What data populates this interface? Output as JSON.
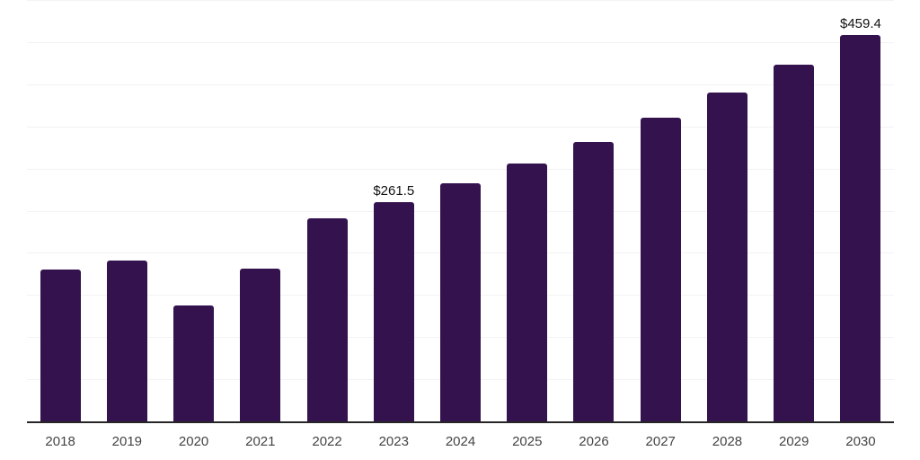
{
  "chart_data": {
    "type": "bar",
    "title": "",
    "xlabel": "",
    "ylabel": "",
    "categories": [
      "2018",
      "2019",
      "2020",
      "2021",
      "2022",
      "2023",
      "2024",
      "2025",
      "2026",
      "2027",
      "2028",
      "2029",
      "2030"
    ],
    "values": [
      181,
      192,
      139,
      182,
      242,
      261.5,
      283.5,
      307.3,
      333.1,
      361.1,
      391.4,
      424.2,
      459.4
    ],
    "bar_labels": [
      "",
      "",
      "",
      "",
      "",
      "$261.5",
      "",
      "",
      "",
      "",
      "",
      "",
      "$459.4"
    ],
    "ylim": [
      0,
      500
    ],
    "gridline_step": 50,
    "grid": "horizontal-only",
    "legend": "none",
    "y_axis_tick_labels": "none",
    "colors": {
      "bar": "#34124e",
      "axis_line": "#262626",
      "gridline": "#f3f3f3",
      "tick_label": "#444444",
      "value_label": "#111111",
      "background": "#ffffff"
    }
  }
}
